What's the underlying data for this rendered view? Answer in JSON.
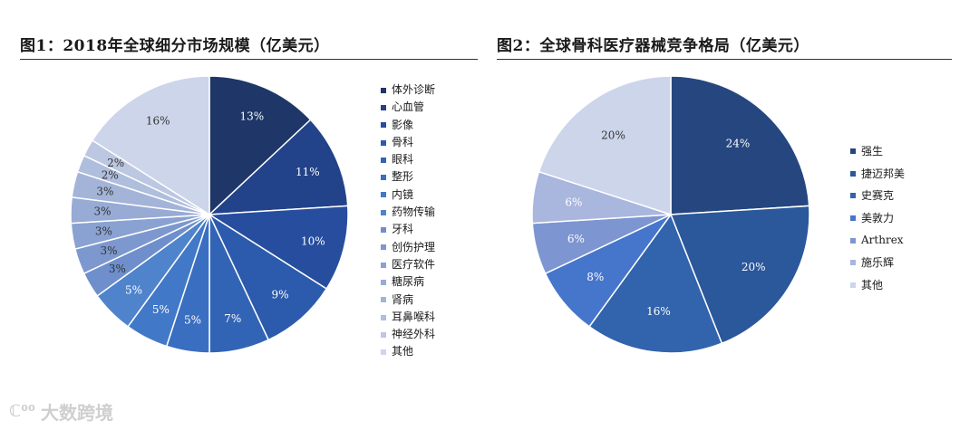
{
  "charts": [
    {
      "title": "图1：2018年全球细分市场规模（亿美元）"
    },
    {
      "title": "图2：全球骨科医疗器械竞争格局（亿美元）"
    }
  ],
  "watermark": "大数跨境",
  "chart_data": [
    {
      "type": "pie",
      "title": "图1：2018年全球细分市场规模（亿美元）",
      "categories": [
        "体外诊断",
        "心血管",
        "影像",
        "骨科",
        "眼科",
        "整形",
        "内镜",
        "药物传输",
        "牙科",
        "创伤护理",
        "医疗软件",
        "糖尿病",
        "肾病",
        "耳鼻喉科",
        "神经外科",
        "其他"
      ],
      "values": [
        13,
        11,
        10,
        9,
        7,
        5,
        5,
        5,
        3,
        3,
        3,
        3,
        3,
        2,
        2,
        16
      ],
      "labels": [
        "13%",
        "11%",
        "10%",
        "9%",
        "7%",
        "5%",
        "5%",
        "5%",
        "3%",
        "3%",
        "3%",
        "3%",
        "3%",
        "2%",
        "2%",
        "16%"
      ],
      "colors": [
        "#1e3668",
        "#22438a",
        "#274e9e",
        "#2c5aac",
        "#3264b6",
        "#3a6ec0",
        "#4179c8",
        "#4f84cc",
        "#6e8fcc",
        "#7d98cf",
        "#8aa2d2",
        "#97abd5",
        "#a3b4d8",
        "#afbedc",
        "#bcc7e1",
        "#ccd5ea"
      ],
      "legend_position": "right"
    },
    {
      "type": "pie",
      "title": "图2：全球骨科医疗器械竞争格局（亿美元）",
      "categories": [
        "强生",
        "捷迈邦美",
        "史赛克",
        "美敦力",
        "Arthrex",
        "施乐辉",
        "其他"
      ],
      "values": [
        24,
        20,
        16,
        8,
        6,
        6,
        20
      ],
      "labels": [
        "24%",
        "20%",
        "16%",
        "8%",
        "6%",
        "6%",
        "20%"
      ],
      "colors": [
        "#26467f",
        "#2b579b",
        "#3263ad",
        "#4676cc",
        "#7d95d1",
        "#a9b6de",
        "#ccd5ea"
      ],
      "legend_position": "right"
    }
  ]
}
